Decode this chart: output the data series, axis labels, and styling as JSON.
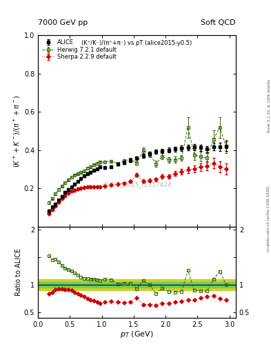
{
  "title_left": "7000 GeV pp",
  "title_right": "Soft QCD",
  "right_label": "Rivet 3.1.10, ≥ 100k events",
  "watermark": "mcplots.cern.ch [arXiv:1306.3436]",
  "analysis_label": "ALICE_2015_I1357424",
  "subtitle": "(K⁺/K⁻)/(π⁺+π⁻) vs pT (alice2015-y0.5)",
  "ylim_main": [
    0.0,
    1.0
  ],
  "ylim_ratio": [
    0.4,
    2.05
  ],
  "xlim": [
    0.0,
    3.1
  ],
  "alice_x": [
    0.175,
    0.225,
    0.275,
    0.325,
    0.375,
    0.425,
    0.475,
    0.525,
    0.575,
    0.625,
    0.675,
    0.725,
    0.775,
    0.825,
    0.875,
    0.925,
    0.975,
    1.05,
    1.15,
    1.25,
    1.35,
    1.45,
    1.55,
    1.65,
    1.75,
    1.85,
    1.95,
    2.05,
    2.15,
    2.25,
    2.35,
    2.45,
    2.55,
    2.65,
    2.75,
    2.85,
    2.95
  ],
  "alice_y": [
    0.082,
    0.102,
    0.118,
    0.138,
    0.158,
    0.178,
    0.193,
    0.207,
    0.221,
    0.236,
    0.25,
    0.264,
    0.275,
    0.285,
    0.294,
    0.303,
    0.313,
    0.308,
    0.314,
    0.325,
    0.335,
    0.346,
    0.358,
    0.37,
    0.38,
    0.393,
    0.395,
    0.4,
    0.405,
    0.41,
    0.413,
    0.418,
    0.413,
    0.405,
    0.418,
    0.418,
    0.42
  ],
  "alice_yerr": [
    0.006,
    0.006,
    0.006,
    0.006,
    0.006,
    0.006,
    0.006,
    0.006,
    0.006,
    0.006,
    0.007,
    0.007,
    0.007,
    0.007,
    0.007,
    0.007,
    0.007,
    0.007,
    0.007,
    0.007,
    0.009,
    0.009,
    0.009,
    0.01,
    0.01,
    0.011,
    0.011,
    0.012,
    0.013,
    0.014,
    0.015,
    0.015,
    0.016,
    0.017,
    0.019,
    0.021,
    0.024
  ],
  "herwig_x": [
    0.175,
    0.225,
    0.275,
    0.325,
    0.375,
    0.425,
    0.475,
    0.525,
    0.575,
    0.625,
    0.675,
    0.725,
    0.775,
    0.825,
    0.875,
    0.925,
    0.975,
    1.05,
    1.15,
    1.25,
    1.35,
    1.45,
    1.55,
    1.65,
    1.75,
    1.85,
    1.95,
    2.05,
    2.15,
    2.25,
    2.35,
    2.45,
    2.55,
    2.65,
    2.75,
    2.85,
    2.95
  ],
  "herwig_y": [
    0.125,
    0.148,
    0.172,
    0.194,
    0.213,
    0.23,
    0.245,
    0.258,
    0.268,
    0.277,
    0.285,
    0.292,
    0.305,
    0.313,
    0.322,
    0.33,
    0.336,
    0.338,
    0.342,
    0.33,
    0.344,
    0.352,
    0.332,
    0.398,
    0.378,
    0.328,
    0.368,
    0.348,
    0.35,
    0.358,
    0.518,
    0.375,
    0.365,
    0.358,
    0.458,
    0.518,
    0.418
  ],
  "herwig_yerr": [
    0.006,
    0.006,
    0.006,
    0.006,
    0.006,
    0.006,
    0.006,
    0.006,
    0.006,
    0.006,
    0.006,
    0.006,
    0.006,
    0.006,
    0.006,
    0.006,
    0.006,
    0.006,
    0.006,
    0.006,
    0.007,
    0.007,
    0.008,
    0.015,
    0.015,
    0.015,
    0.015,
    0.015,
    0.015,
    0.015,
    0.055,
    0.025,
    0.025,
    0.025,
    0.045,
    0.055,
    0.035
  ],
  "sherpa_x": [
    0.175,
    0.225,
    0.275,
    0.325,
    0.375,
    0.425,
    0.475,
    0.525,
    0.575,
    0.625,
    0.675,
    0.725,
    0.775,
    0.825,
    0.875,
    0.925,
    0.975,
    1.05,
    1.15,
    1.25,
    1.35,
    1.45,
    1.55,
    1.65,
    1.75,
    1.85,
    1.95,
    2.05,
    2.15,
    2.25,
    2.35,
    2.45,
    2.55,
    2.65,
    2.75,
    2.85,
    2.95
  ],
  "sherpa_y": [
    0.068,
    0.088,
    0.108,
    0.127,
    0.146,
    0.161,
    0.175,
    0.185,
    0.191,
    0.196,
    0.201,
    0.206,
    0.207,
    0.207,
    0.207,
    0.207,
    0.207,
    0.212,
    0.217,
    0.222,
    0.227,
    0.237,
    0.27,
    0.237,
    0.242,
    0.247,
    0.262,
    0.262,
    0.277,
    0.287,
    0.297,
    0.302,
    0.312,
    0.317,
    0.332,
    0.312,
    0.302
  ],
  "sherpa_yerr": [
    0.004,
    0.004,
    0.004,
    0.004,
    0.004,
    0.004,
    0.004,
    0.004,
    0.004,
    0.004,
    0.004,
    0.004,
    0.004,
    0.004,
    0.004,
    0.004,
    0.004,
    0.004,
    0.004,
    0.004,
    0.006,
    0.007,
    0.009,
    0.009,
    0.009,
    0.009,
    0.011,
    0.011,
    0.013,
    0.014,
    0.016,
    0.018,
    0.02,
    0.023,
    0.026,
    0.028,
    0.03
  ],
  "alice_color": "#000000",
  "herwig_color": "#336600",
  "sherpa_color": "#cc0000",
  "herwig_band_color_inner": "#66cc66",
  "herwig_band_color_outer": "#cccc00"
}
